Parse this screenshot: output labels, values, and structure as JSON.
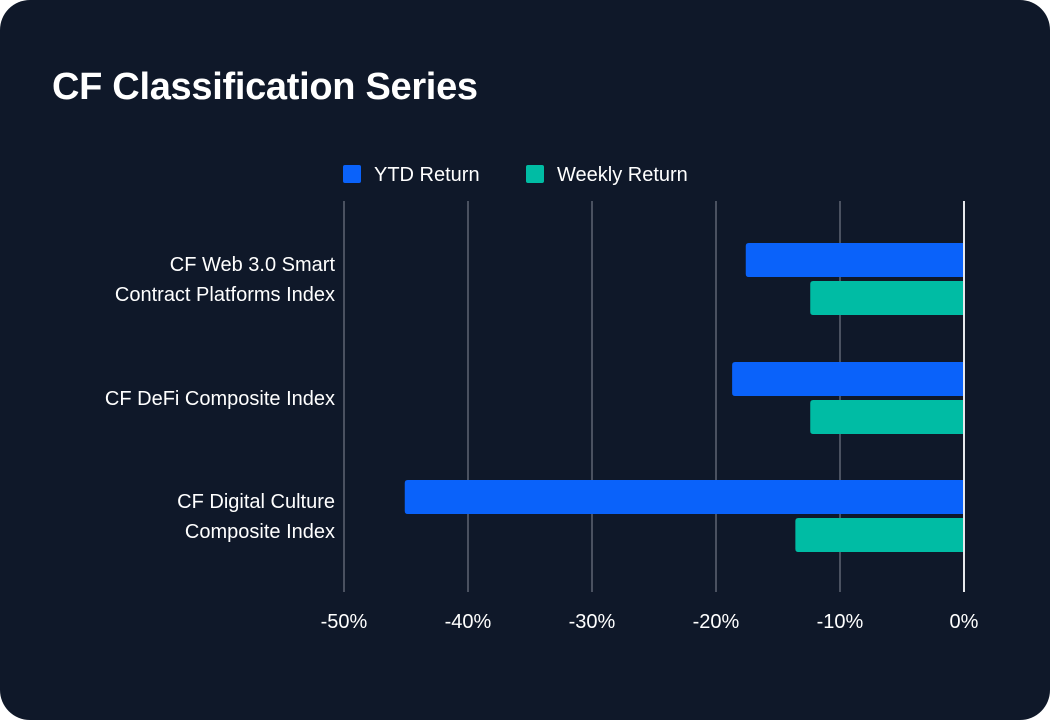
{
  "header": {
    "title": "CF Classification Series"
  },
  "colors": {
    "background": "#0f1829",
    "ytd": "#0a62fa",
    "weekly": "#00bca4",
    "grid": "#4a5160",
    "zero_line": "#e6e8ec",
    "text": "#ffffff"
  },
  "chart_data": {
    "type": "bar",
    "orientation": "horizontal",
    "title": "CF Classification Series",
    "categories": [
      [
        "CF Web 3.0 Smart",
        "Contract Platforms Index"
      ],
      [
        "CF DeFi Composite Index"
      ],
      [
        "CF Digital Culture",
        "Composite Index"
      ]
    ],
    "series": [
      {
        "name": "YTD Return",
        "color": "#0a62fa",
        "values": [
          -17.6,
          -18.7,
          -45.1
        ]
      },
      {
        "name": "Weekly Return",
        "color": "#00bca4",
        "values": [
          -12.4,
          -12.4,
          -13.6
        ]
      }
    ],
    "xlim": [
      -50,
      0
    ],
    "xticks": [
      -50,
      -40,
      -30,
      -20,
      -10,
      0
    ],
    "tick_labels": [
      "-50%",
      "-40%",
      "-30%",
      "-20%",
      "-10%",
      "0%"
    ],
    "grid": true,
    "legend_position": "top-center",
    "xlabel": "",
    "ylabel": ""
  }
}
